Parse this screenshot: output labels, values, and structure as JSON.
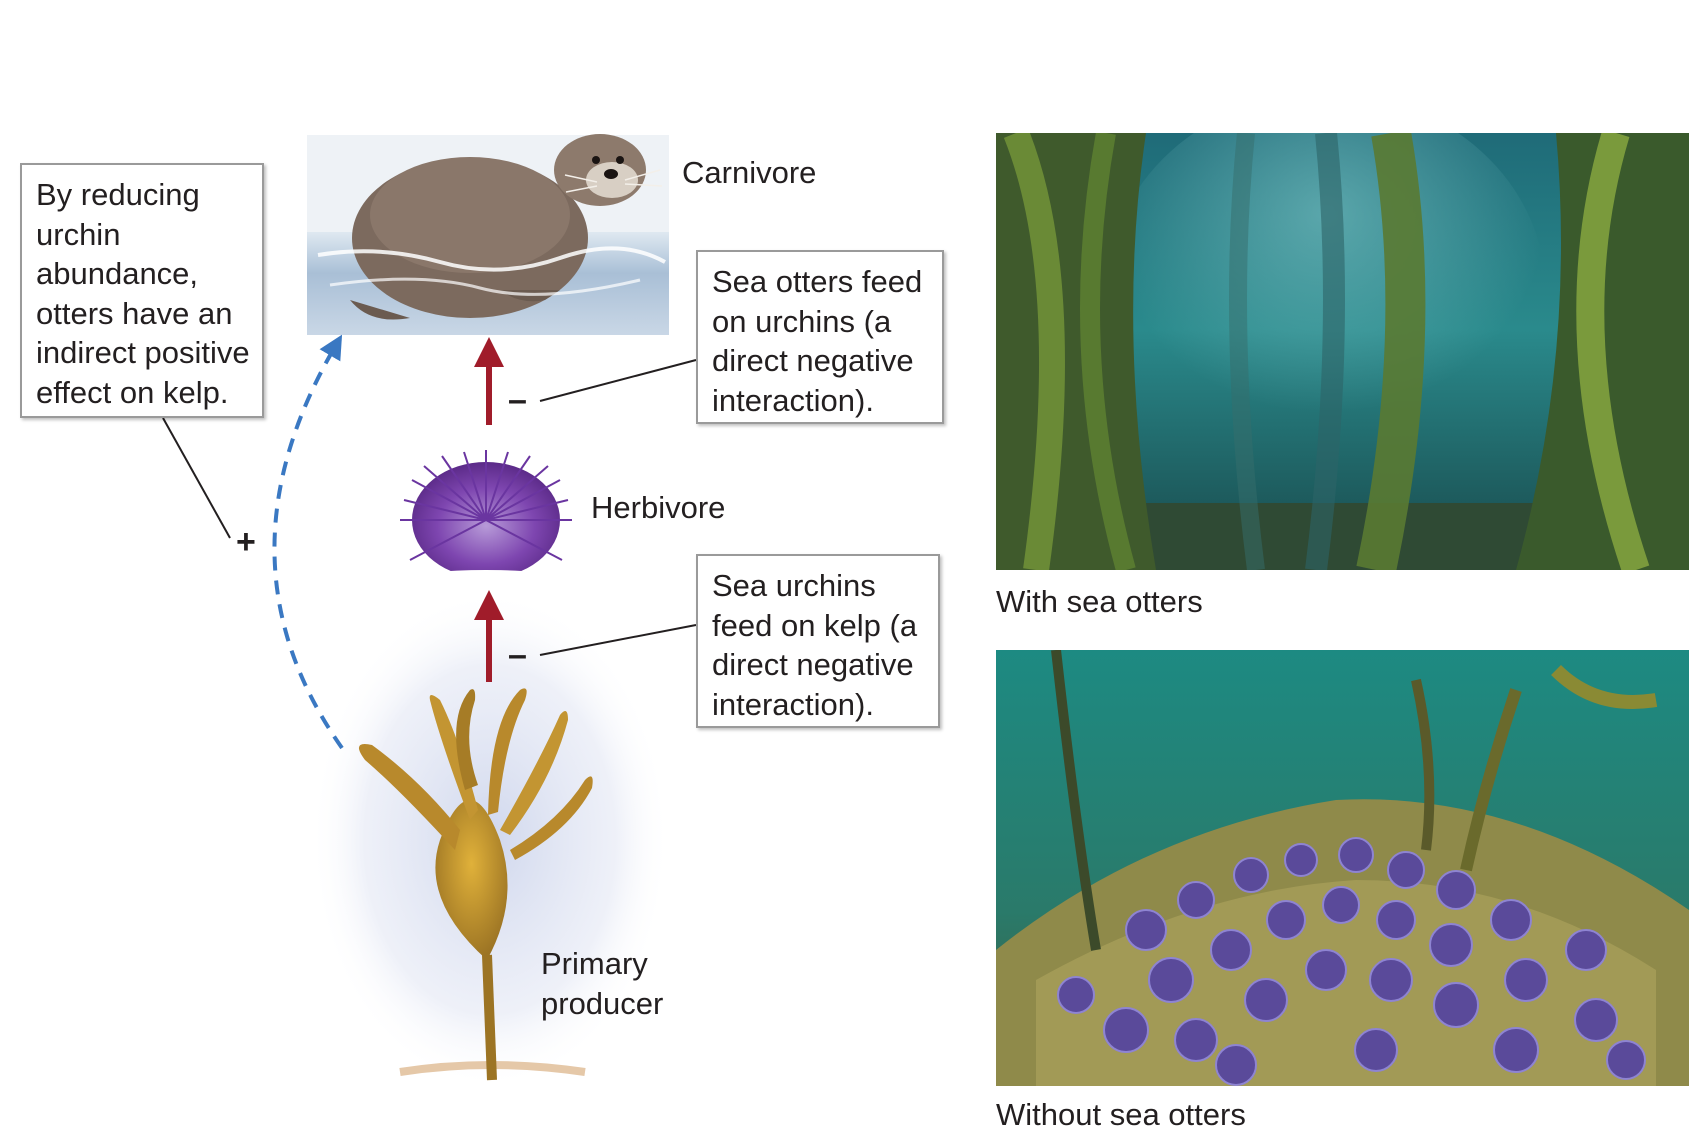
{
  "trophic_levels": {
    "carnivore": "Carnivore",
    "herbivore": "Herbivore",
    "primary_producer": [
      "Primary",
      "producer"
    ]
  },
  "callouts": {
    "indirect_effect": [
      "By reducing",
      "urchin",
      "abundance,",
      "otters have an",
      "indirect positive",
      "effect on kelp."
    ],
    "otters_feed": [
      "Sea otters feed",
      "on urchins (a",
      "direct negative",
      "interaction)."
    ],
    "urchins_feed": [
      "Sea urchins",
      "feed on kelp (a",
      "direct negative",
      "interaction)."
    ]
  },
  "signs": {
    "positive": "+",
    "negative_top": "–",
    "negative_bottom": "–"
  },
  "photos": {
    "with_otters_caption": "With sea otters",
    "without_otters_caption": "Without sea otters"
  },
  "colors": {
    "arrow_red": "#a01c2a",
    "dashed_blue": "#3a78c2",
    "callout_border": "#9a9a9a",
    "kelp": "#b58a2a",
    "urchin": "#7a3fa8",
    "otter": "#7c6a5e"
  }
}
